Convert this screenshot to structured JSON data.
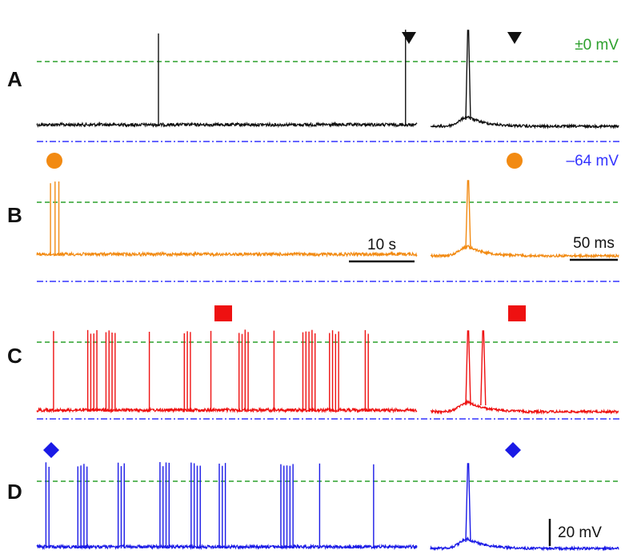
{
  "chart_data": {
    "type": "line",
    "title": "",
    "reference_lines": {
      "zero": {
        "label": "±0 mV",
        "value_mV": 0,
        "color": "#2ca02c"
      },
      "rest": {
        "label": "–64 mV",
        "value_mV": -64,
        "color": "#3333ff"
      }
    },
    "scale_bars": {
      "time_overview": "10 s",
      "time_zoom": "50 ms",
      "voltage": "20 mV"
    },
    "panels": [
      {
        "letter": "A",
        "color": "#111111",
        "marker": "triangle",
        "overview_spike_times_s": [
          16.0,
          48.5
        ],
        "zoom_spike_times_ms": [
          40
        ]
      },
      {
        "letter": "B",
        "color": "#f28a12",
        "marker": "circle",
        "overview_spike_times_s": [
          1.8,
          2.4,
          2.9
        ],
        "zoom_spike_times_ms": [
          40
        ]
      },
      {
        "letter": "C",
        "color": "#ee1111",
        "marker": "square",
        "overview_spike_times_s": [
          2.2,
          6.7,
          7.1,
          7.5,
          7.9,
          9.1,
          9.5,
          9.9,
          10.3,
          14.8,
          19.4,
          19.8,
          20.2,
          22.9,
          26.6,
          27.0,
          27.4,
          27.8,
          31.2,
          35.0,
          35.4,
          35.8,
          36.2,
          36.6,
          38.5,
          38.9,
          39.3,
          39.7,
          43.2,
          43.6
        ],
        "zoom_spike_times_ms": [
          40,
          56
        ]
      },
      {
        "letter": "D",
        "color": "#1a1ae6",
        "marker": "diamond",
        "overview_spike_times_s": [
          1.2,
          1.6,
          5.4,
          5.8,
          6.2,
          6.6,
          10.7,
          11.1,
          11.5,
          16.2,
          16.6,
          17.0,
          17.4,
          20.3,
          20.7,
          21.1,
          21.5,
          24.0,
          24.4,
          24.8,
          32.1,
          32.5,
          32.9,
          33.3,
          33.7,
          37.2,
          44.3
        ],
        "zoom_spike_times_ms": [
          40
        ]
      }
    ]
  }
}
